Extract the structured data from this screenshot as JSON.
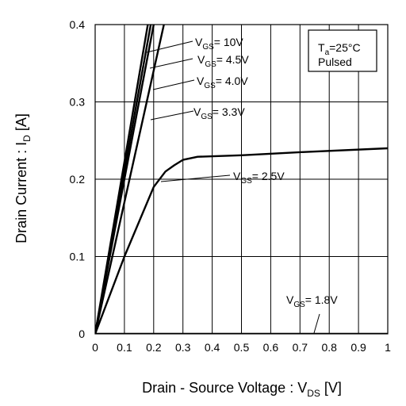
{
  "chart_data": {
    "type": "line",
    "xlabel": "Drain - Source Voltage : VDS [V]",
    "xlabel_main": "Drain - Source Voltage : V",
    "xlabel_sub": "DS",
    "xlabel_tail": " [V]",
    "ylabel": "Drain Current : ID [A]",
    "ylabel_main": "Drain Current : I",
    "ylabel_sub": "D",
    "ylabel_tail": " [A]",
    "xlim": [
      0,
      1
    ],
    "ylim": [
      0,
      0.4
    ],
    "grid": true,
    "x_ticks": [
      "0",
      "0.1",
      "0.2",
      "0.3",
      "0.4",
      "0.5",
      "0.6",
      "0.7",
      "0.8",
      "0.9",
      "1"
    ],
    "y_ticks": [
      "0",
      "0.1",
      "0.2",
      "0.3",
      "0.4"
    ],
    "conditions": {
      "temp_main": "T",
      "temp_sub": "a",
      "temp_tail": "=25°C",
      "mode": "Pulsed"
    },
    "series": [
      {
        "name": "VGS= 10V",
        "label_main": "V",
        "label_sub": "GS",
        "label_tail": "= 10V",
        "x": [
          0,
          0.18
        ],
        "y": [
          0,
          0.4
        ]
      },
      {
        "name": "VGS= 4.5V",
        "label_main": "V",
        "label_sub": "GS",
        "label_tail": "= 4.5V",
        "x": [
          0,
          0.19
        ],
        "y": [
          0,
          0.4
        ]
      },
      {
        "name": "VGS= 4.0V",
        "label_main": "V",
        "label_sub": "GS",
        "label_tail": "= 4.0V",
        "x": [
          0,
          0.2
        ],
        "y": [
          0,
          0.4
        ]
      },
      {
        "name": "VGS= 3.3V",
        "label_main": "V",
        "label_sub": "GS",
        "label_tail": "= 3.3V",
        "x": [
          0,
          0.235
        ],
        "y": [
          0,
          0.4
        ]
      },
      {
        "name": "VGS= 2.5V",
        "label_main": "V",
        "label_sub": "GS",
        "label_tail": "= 2.5V",
        "x": [
          0,
          0.1,
          0.2,
          0.24,
          0.27,
          0.3,
          0.35,
          0.5,
          0.7,
          1.0
        ],
        "y": [
          0,
          0.1,
          0.19,
          0.21,
          0.218,
          0.225,
          0.229,
          0.231,
          0.235,
          0.24
        ]
      },
      {
        "name": "VGS= 1.8V",
        "label_main": "V",
        "label_sub": "GS",
        "label_tail": "= 1.8V",
        "x": [
          0,
          1
        ],
        "y": [
          0,
          0
        ]
      }
    ]
  }
}
